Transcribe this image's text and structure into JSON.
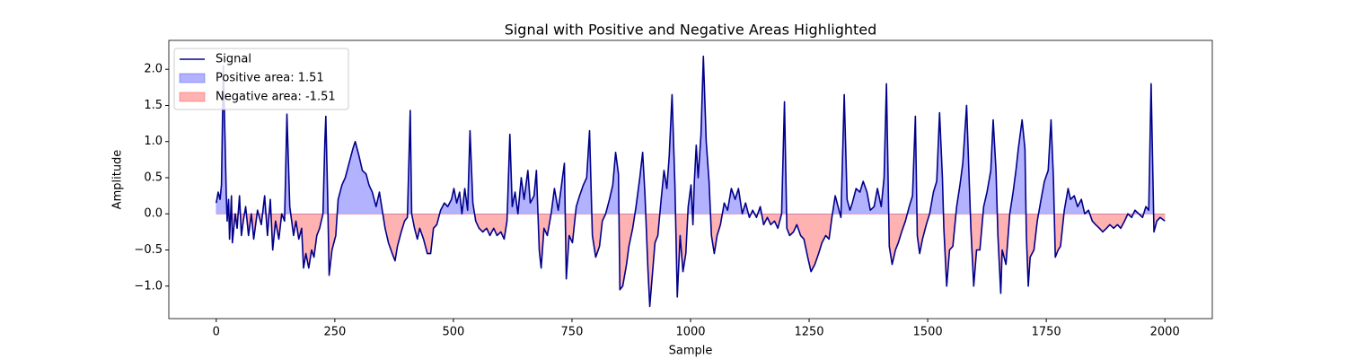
{
  "chart_data": {
    "type": "line",
    "title": "Signal with Positive and Negative Areas Highlighted",
    "x_label": "Sample",
    "y_label": "Amplitude",
    "xlim": [
      -100,
      2100
    ],
    "ylim": [
      -1.45,
      2.4
    ],
    "xticks": [
      0,
      250,
      500,
      750,
      1000,
      1250,
      1500,
      1750,
      2000
    ],
    "yticks": [
      {
        "value": -1,
        "label": "−1.0"
      },
      {
        "value": -0.5,
        "label": "−0.5"
      },
      {
        "value": 0,
        "label": "0.0"
      },
      0.5,
      {
        "value": 1,
        "label": "1.0"
      },
      1.5,
      {
        "value": 2,
        "label": "2.0"
      }
    ],
    "legend": "upper left",
    "series": [
      {
        "name": "Signal",
        "color": "#00008b",
        "x": [
          0,
          4,
          8,
          11,
          15,
          21,
          23,
          26,
          28,
          32,
          34,
          40,
          44,
          49,
          53,
          57,
          62,
          68,
          74,
          79,
          87,
          95,
          102,
          108,
          114,
          119,
          125,
          132,
          138,
          144,
          149,
          155,
          163,
          168,
          174,
          180,
          184,
          189,
          195,
          201,
          206,
          212,
          218,
          225,
          229,
          231,
          235,
          238,
          244,
          252,
          257,
          265,
          272,
          280,
          288,
          293,
          301,
          308,
          316,
          322,
          329,
          337,
          344,
          350,
          356,
          363,
          371,
          377,
          382,
          390,
          397,
          403,
          409,
          412,
          418,
          424,
          429,
          437,
          445,
          452,
          458,
          465,
          473,
          481,
          488,
          496,
          501,
          507,
          513,
          518,
          524,
          530,
          535,
          541,
          547,
          554,
          562,
          570,
          577,
          585,
          592,
          600,
          607,
          613,
          619,
          624,
          630,
          636,
          643,
          649,
          657,
          662,
          670,
          675,
          681,
          685,
          691,
          698,
          706,
          713,
          721,
          728,
          734,
          738,
          744,
          751,
          759,
          766,
          774,
          781,
          787,
          793,
          800,
          808,
          814,
          821,
          829,
          836,
          842,
          848,
          851,
          857,
          865,
          870,
          878,
          885,
          893,
          899,
          904,
          910,
          914,
          920,
          925,
          931,
          938,
          944,
          950,
          955,
          961,
          967,
          972,
          978,
          984,
          990,
          995,
          1001,
          1005,
          1008,
          1012,
          1016,
          1022,
          1027,
          1033,
          1039,
          1044,
          1050,
          1056,
          1063,
          1071,
          1078,
          1086,
          1094,
          1101,
          1109,
          1116,
          1124,
          1131,
          1139,
          1147,
          1154,
          1162,
          1169,
          1177,
          1184,
          1192,
          1198,
          1203,
          1209,
          1217,
          1224,
          1232,
          1239,
          1247,
          1254,
          1262,
          1270,
          1277,
          1285,
          1292,
          1298,
          1305,
          1311,
          1317,
          1324,
          1330,
          1336,
          1341,
          1349,
          1357,
          1364,
          1372,
          1379,
          1387,
          1394,
          1402,
          1408,
          1413,
          1419,
          1425,
          1432,
          1438,
          1445,
          1453,
          1461,
          1468,
          1474,
          1478,
          1483,
          1489,
          1497,
          1504,
          1512,
          1519,
          1525,
          1531,
          1534,
          1540,
          1546,
          1553,
          1561,
          1568,
          1574,
          1582,
          1587,
          1591,
          1597,
          1603,
          1610,
          1618,
          1625,
          1633,
          1638,
          1644,
          1648,
          1654,
          1657,
          1665,
          1673,
          1680,
          1686,
          1691,
          1699,
          1705,
          1708,
          1712,
          1716,
          1724,
          1731,
          1739,
          1746,
          1754,
          1760,
          1765,
          1769,
          1775,
          1780,
          1788,
          1796,
          1801,
          1809,
          1816,
          1824,
          1831,
          1839,
          1847,
          1854,
          1862,
          1869,
          1877,
          1884,
          1892,
          1900,
          1907,
          1915,
          1922,
          1930,
          1937,
          1945,
          1953,
          1960,
          1966,
          1971,
          1977,
          1983,
          1990,
          2000
        ],
        "values": [
          0.15,
          0.3,
          0.2,
          0.4,
          2.05,
          0.3,
          -0.1,
          0.2,
          -0.35,
          0.25,
          -0.4,
          0.0,
          -0.2,
          0.25,
          -0.3,
          -0.1,
          0.1,
          -0.3,
          0.0,
          -0.35,
          0.05,
          -0.15,
          0.25,
          -0.3,
          0.2,
          -0.5,
          -0.1,
          -0.35,
          0.0,
          -0.1,
          1.38,
          0.1,
          -0.3,
          -0.1,
          -0.35,
          -0.2,
          -0.75,
          -0.55,
          -0.75,
          -0.5,
          -0.6,
          -0.3,
          -0.2,
          0.0,
          1.0,
          1.35,
          0.2,
          -0.85,
          -0.5,
          -0.3,
          0.2,
          0.4,
          0.5,
          0.7,
          0.9,
          1.0,
          0.8,
          0.6,
          0.55,
          0.4,
          0.3,
          0.1,
          0.3,
          0.05,
          -0.2,
          -0.4,
          -0.55,
          -0.65,
          -0.45,
          -0.25,
          -0.1,
          -0.05,
          1.43,
          0.0,
          -0.2,
          -0.35,
          -0.2,
          -0.35,
          -0.55,
          -0.55,
          -0.2,
          -0.15,
          0.05,
          0.15,
          0.1,
          0.2,
          0.35,
          0.15,
          0.3,
          0.0,
          0.35,
          0.05,
          1.15,
          0.15,
          -0.1,
          -0.2,
          -0.25,
          -0.2,
          -0.3,
          -0.2,
          -0.3,
          -0.25,
          -0.35,
          -0.1,
          1.1,
          0.1,
          0.3,
          0.0,
          0.5,
          0.2,
          0.6,
          0.15,
          0.25,
          0.6,
          -0.5,
          -0.75,
          -0.2,
          -0.3,
          0.0,
          0.35,
          0.05,
          0.4,
          0.7,
          -0.9,
          -0.3,
          -0.4,
          0.1,
          0.25,
          0.4,
          0.5,
          1.15,
          -0.3,
          -0.6,
          -0.45,
          -0.1,
          0.0,
          0.2,
          0.4,
          0.85,
          0.55,
          -1.05,
          -1.0,
          -0.7,
          -0.45,
          -0.2,
          0.1,
          0.5,
          0.85,
          0.25,
          -0.75,
          -1.28,
          -0.8,
          -0.4,
          -0.3,
          0.2,
          0.6,
          0.35,
          0.8,
          1.65,
          0.4,
          -1.15,
          -0.3,
          -0.8,
          -0.55,
          0.1,
          0.4,
          -0.15,
          0.45,
          0.95,
          0.5,
          1.1,
          2.18,
          1.0,
          0.45,
          -0.3,
          -0.55,
          -0.3,
          -0.15,
          0.15,
          0.05,
          0.35,
          0.2,
          0.35,
          0.0,
          0.15,
          -0.05,
          0.05,
          -0.05,
          0.1,
          -0.15,
          -0.05,
          -0.15,
          -0.1,
          -0.2,
          0.0,
          1.55,
          -0.2,
          -0.3,
          -0.25,
          -0.15,
          -0.3,
          -0.35,
          -0.6,
          -0.8,
          -0.7,
          -0.55,
          -0.4,
          -0.3,
          -0.35,
          -0.05,
          0.25,
          0.1,
          -0.05,
          1.65,
          0.2,
          0.05,
          0.15,
          0.35,
          0.3,
          0.45,
          0.3,
          0.05,
          0.1,
          0.35,
          0.1,
          0.5,
          1.8,
          -0.45,
          -0.7,
          -0.5,
          -0.4,
          -0.25,
          -0.1,
          0.1,
          0.25,
          1.35,
          -0.3,
          -0.55,
          -0.35,
          -0.15,
          0.0,
          0.3,
          0.45,
          1.4,
          0.5,
          -0.2,
          -1.0,
          -0.5,
          -0.45,
          0.1,
          0.4,
          0.7,
          1.5,
          0.55,
          -0.2,
          -1.0,
          -0.5,
          -0.5,
          0.1,
          0.3,
          0.6,
          1.3,
          0.6,
          -0.3,
          -1.1,
          -0.5,
          -0.7,
          0.0,
          0.3,
          0.6,
          0.9,
          1.3,
          0.9,
          -0.3,
          -1.0,
          -0.6,
          -0.5,
          -0.1,
          0.2,
          0.45,
          0.6,
          1.3,
          0.5,
          -0.6,
          -0.5,
          -0.45,
          0.05,
          0.35,
          0.2,
          0.25,
          0.1,
          0.2,
          0.0,
          0.05,
          -0.1,
          -0.15,
          -0.2,
          -0.25,
          -0.2,
          -0.15,
          -0.2,
          -0.15,
          -0.2,
          -0.1,
          0.0,
          -0.05,
          0.05,
          0.0,
          -0.05,
          0.1,
          0.05,
          1.8,
          -0.25,
          -0.1,
          -0.05,
          -0.1
        ]
      }
    ],
    "fills": [
      {
        "name": "Positive area: 1.51",
        "color": "#0000ff",
        "alpha": 0.3,
        "where": "above"
      },
      {
        "name": "Negative area: -1.51",
        "color": "#ff0000",
        "alpha": 0.3,
        "where": "below"
      }
    ]
  }
}
